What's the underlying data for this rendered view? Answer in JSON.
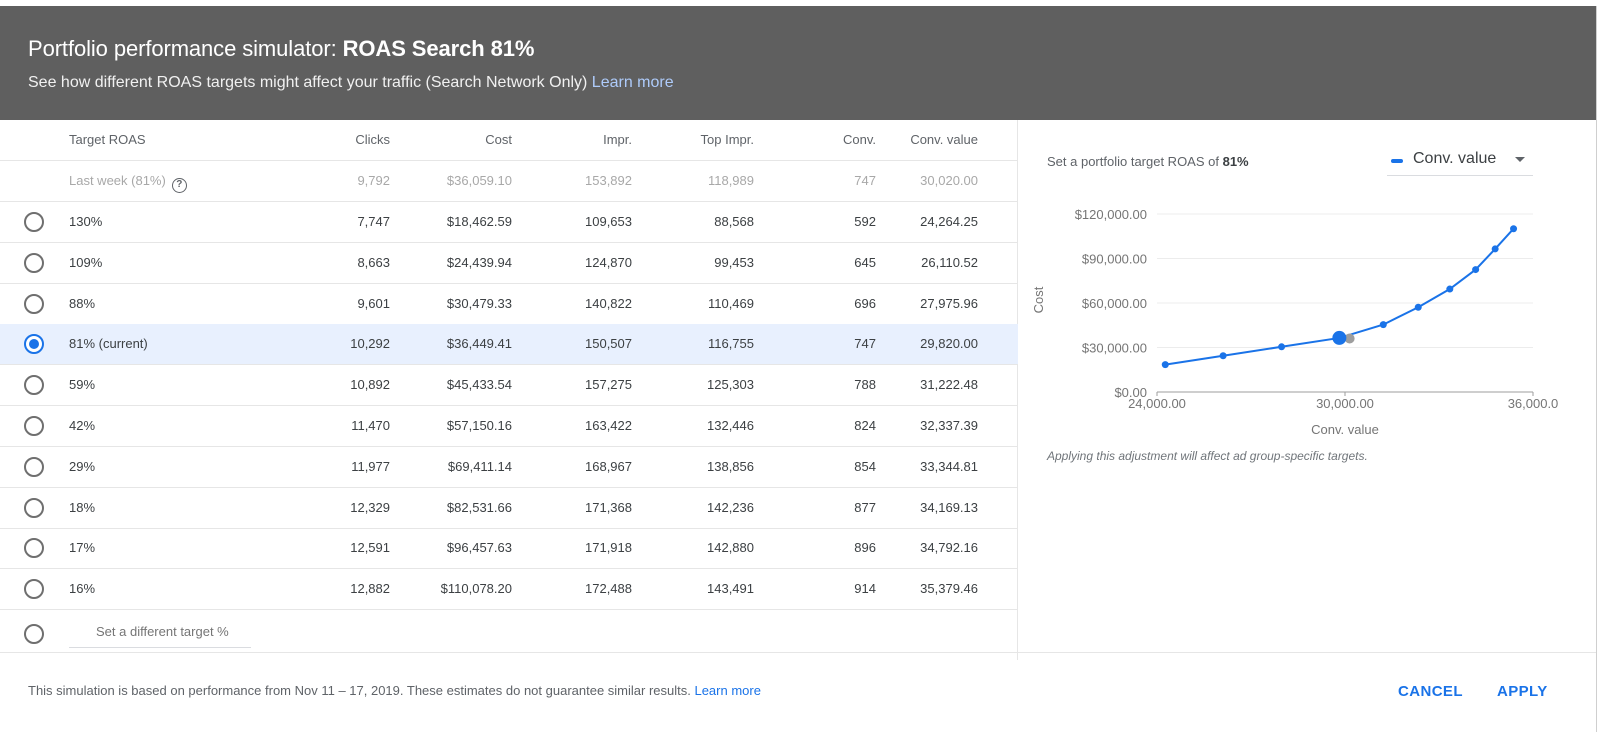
{
  "header": {
    "title_prefix": "Portfolio performance simulator: ",
    "title_strong": "ROAS Search 81%",
    "subtitle": "See how different ROAS targets might affect your traffic (Search Network Only) ",
    "learn_more": "Learn more"
  },
  "table": {
    "columns": [
      "Target ROAS",
      "Clicks",
      "Cost",
      "Impr.",
      "Top Impr.",
      "Conv.",
      "Conv. value"
    ],
    "last_week": {
      "label": "Last week (81%)",
      "help_icon": "?",
      "clicks": "9,792",
      "cost": "$36,059.10",
      "impr": "153,892",
      "top_impr": "118,989",
      "conv": "747",
      "conv_value": "30,020.00"
    },
    "rows": [
      {
        "target": "130%",
        "clicks": "7,747",
        "cost": "$18,462.59",
        "impr": "109,653",
        "top_impr": "88,568",
        "conv": "592",
        "conv_value": "24,264.25",
        "selected": false
      },
      {
        "target": "109%",
        "clicks": "8,663",
        "cost": "$24,439.94",
        "impr": "124,870",
        "top_impr": "99,453",
        "conv": "645",
        "conv_value": "26,110.52",
        "selected": false
      },
      {
        "target": "88%",
        "clicks": "9,601",
        "cost": "$30,479.33",
        "impr": "140,822",
        "top_impr": "110,469",
        "conv": "696",
        "conv_value": "27,975.96",
        "selected": false
      },
      {
        "target": "81% (current)",
        "clicks": "10,292",
        "cost": "$36,449.41",
        "impr": "150,507",
        "top_impr": "116,755",
        "conv": "747",
        "conv_value": "29,820.00",
        "selected": true
      },
      {
        "target": "59%",
        "clicks": "10,892",
        "cost": "$45,433.54",
        "impr": "157,275",
        "top_impr": "125,303",
        "conv": "788",
        "conv_value": "31,222.48",
        "selected": false
      },
      {
        "target": "42%",
        "clicks": "11,470",
        "cost": "$57,150.16",
        "impr": "163,422",
        "top_impr": "132,446",
        "conv": "824",
        "conv_value": "32,337.39",
        "selected": false
      },
      {
        "target": "29%",
        "clicks": "11,977",
        "cost": "$69,411.14",
        "impr": "168,967",
        "top_impr": "138,856",
        "conv": "854",
        "conv_value": "33,344.81",
        "selected": false
      },
      {
        "target": "18%",
        "clicks": "12,329",
        "cost": "$82,531.66",
        "impr": "171,368",
        "top_impr": "142,236",
        "conv": "877",
        "conv_value": "34,169.13",
        "selected": false
      },
      {
        "target": "17%",
        "clicks": "12,591",
        "cost": "$96,457.63",
        "impr": "171,918",
        "top_impr": "142,880",
        "conv": "896",
        "conv_value": "34,792.16",
        "selected": false
      },
      {
        "target": "16%",
        "clicks": "12,882",
        "cost": "$110,078.20",
        "impr": "172,488",
        "top_impr": "143,491",
        "conv": "914",
        "conv_value": "35,379.46",
        "selected": false
      }
    ],
    "custom_target_placeholder": "Set a different target %"
  },
  "chart_panel": {
    "caption_prefix": "Set a portfolio target ROAS of ",
    "caption_value": "81%",
    "metric_select": "Conv. value",
    "note": "Applying this adjustment will affect ad group-specific targets."
  },
  "chart_data": {
    "type": "line",
    "title": "",
    "xlabel": "Conv. value",
    "ylabel": "Cost",
    "x_ticks": [
      "24,000.00",
      "30,000.00",
      "36,000.0"
    ],
    "y_ticks": [
      "$0.00",
      "$30,000.00",
      "$60,000.00",
      "$90,000.00",
      "$120,000.00"
    ],
    "xlim": [
      24000,
      36000
    ],
    "ylim": [
      0,
      120000
    ],
    "grid": true,
    "series": [
      {
        "name": "Conv. value",
        "color": "#1a73e8",
        "x": [
          24264.25,
          26110.52,
          27975.96,
          29820.0,
          31222.48,
          32337.39,
          33344.81,
          34169.13,
          34792.16,
          35379.46
        ],
        "y": [
          18462.59,
          24439.94,
          30479.33,
          36449.41,
          45433.54,
          57150.16,
          69411.14,
          82531.66,
          96457.63,
          110078.2
        ]
      }
    ],
    "highlight_current": {
      "x": 29820.0,
      "y": 36449.41,
      "color": "#1a73e8"
    },
    "last_week_point": {
      "x": 30020.0,
      "y": 36059.1,
      "color": "#9e9e9e"
    }
  },
  "footer": {
    "note": "This simulation is based on performance from Nov 11 – 17, 2019. These estimates do not guarantee similar results. ",
    "learn_more": "Learn more",
    "cancel": "CANCEL",
    "apply": "APPLY"
  },
  "colors": {
    "header_bg": "#5f5f5f",
    "accent": "#1a73e8",
    "selected_row_bg": "#e8f0fe"
  }
}
